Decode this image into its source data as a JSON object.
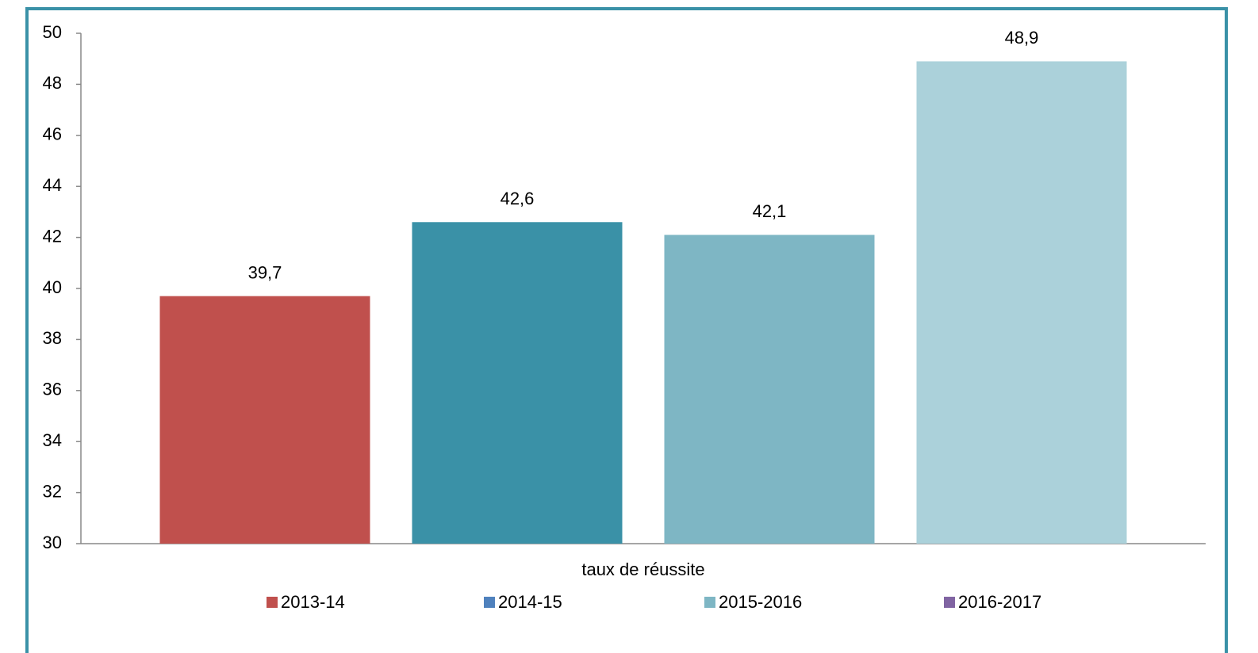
{
  "chart_data": {
    "type": "bar",
    "categories": [
      "taux de réussite"
    ],
    "series": [
      {
        "name": "2013-14",
        "color": "#c0504d",
        "legend_color": "#c0504d",
        "values": [
          39.7
        ],
        "value_labels": [
          "39,7"
        ]
      },
      {
        "name": "2014-15",
        "color": "#3a91a7",
        "legend_color": "#4f81bd",
        "values": [
          42.6
        ],
        "value_labels": [
          "42,6"
        ]
      },
      {
        "name": "2015-2016",
        "color": "#7eb6c4",
        "legend_color": "#7eb6c4",
        "values": [
          42.1
        ],
        "value_labels": [
          "42,1"
        ]
      },
      {
        "name": "2016-2017",
        "color": "#abd1da",
        "legend_color": "#8064a2",
        "values": [
          48.9
        ],
        "value_labels": [
          "48,9"
        ]
      }
    ],
    "ylim": [
      30,
      50
    ],
    "yticks": [
      30,
      32,
      34,
      36,
      38,
      40,
      42,
      44,
      46,
      48,
      50
    ],
    "grid": false,
    "legend": "bottom"
  }
}
